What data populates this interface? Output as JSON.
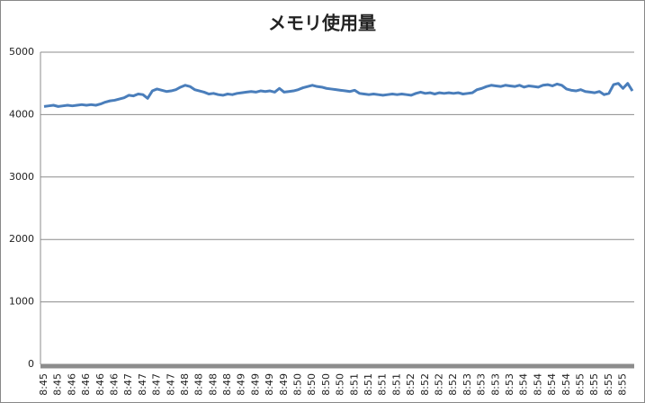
{
  "chart_data": {
    "type": "line",
    "title": "メモリ使用量",
    "categories": [
      "8:45",
      null,
      null,
      "8:45",
      null,
      null,
      "8:46",
      null,
      null,
      "8:46",
      null,
      null,
      "8:46",
      null,
      null,
      "8:46",
      null,
      null,
      "8:47",
      null,
      null,
      "8:47",
      null,
      null,
      "8:47",
      null,
      null,
      "8:47",
      null,
      null,
      "8:48",
      null,
      null,
      "8:48",
      null,
      null,
      "8:48",
      null,
      null,
      "8:48",
      null,
      null,
      "8:49",
      null,
      null,
      "8:49",
      null,
      null,
      "8:49",
      null,
      null,
      "8:49",
      null,
      null,
      "8:50",
      null,
      null,
      "8:50",
      null,
      null,
      "8:50",
      null,
      null,
      "8:50",
      null,
      null,
      "8:51",
      null,
      null,
      "8:51",
      null,
      null,
      "8:51",
      null,
      null,
      "8:51",
      null,
      null,
      "8:52",
      null,
      null,
      "8:52",
      null,
      null,
      "8:52",
      null,
      null,
      "8:52",
      null,
      null,
      "8:53",
      null,
      null,
      "8:53",
      null,
      null,
      "8:53",
      null,
      null,
      "8:53",
      null,
      null,
      "8:54",
      null,
      null,
      "8:54",
      null,
      null,
      "8:54",
      null,
      null,
      "8:54",
      null,
      null,
      "8:55",
      null,
      null,
      "8:55",
      null,
      null,
      "8:55",
      null,
      null,
      "8:55",
      null,
      null
    ],
    "values": [
      4130,
      4140,
      4150,
      4130,
      4140,
      4150,
      4140,
      4150,
      4160,
      4150,
      4160,
      4150,
      4170,
      4200,
      4220,
      4230,
      4250,
      4270,
      4310,
      4300,
      4330,
      4320,
      4260,
      4380,
      4410,
      4390,
      4370,
      4380,
      4400,
      4440,
      4470,
      4450,
      4400,
      4380,
      4360,
      4330,
      4340,
      4320,
      4310,
      4330,
      4320,
      4340,
      4350,
      4360,
      4370,
      4360,
      4380,
      4370,
      4380,
      4360,
      4420,
      4360,
      4370,
      4380,
      4400,
      4430,
      4450,
      4470,
      4450,
      4440,
      4420,
      4410,
      4400,
      4390,
      4380,
      4370,
      4390,
      4340,
      4330,
      4320,
      4330,
      4320,
      4310,
      4320,
      4330,
      4320,
      4330,
      4320,
      4310,
      4340,
      4360,
      4340,
      4350,
      4330,
      4350,
      4340,
      4350,
      4340,
      4350,
      4330,
      4340,
      4350,
      4400,
      4420,
      4450,
      4470,
      4460,
      4450,
      4470,
      4460,
      4450,
      4470,
      4440,
      4460,
      4450,
      4440,
      4470,
      4480,
      4460,
      4490,
      4470,
      4410,
      4390,
      4380,
      4400,
      4370,
      4360,
      4350,
      4370,
      4320,
      4340,
      4480,
      4500,
      4420,
      4500,
      4380
    ],
    "color": "#4a7ebb",
    "ylim": [
      0,
      5000
    ],
    "yticks": [
      0,
      1000,
      2000,
      3000,
      4000,
      5000
    ],
    "grid": true
  }
}
